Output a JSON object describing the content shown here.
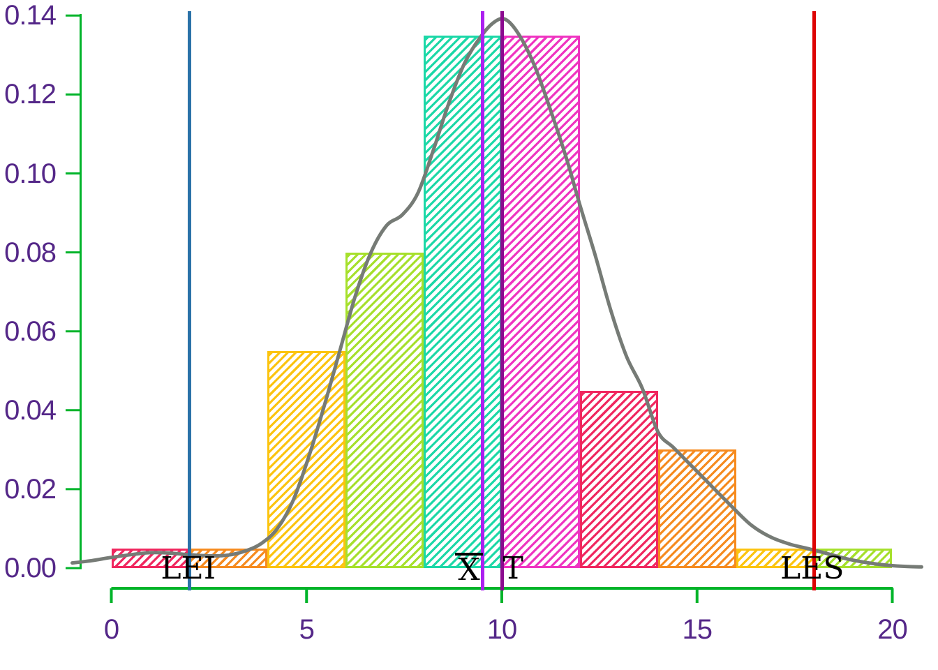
{
  "chart_data": {
    "type": "histogram_with_density",
    "title": "",
    "xlabel": "",
    "ylabel": "",
    "xlim": [
      -1,
      21.2
    ],
    "ylim": [
      0,
      0.14
    ],
    "grid": false,
    "x_ticks": [
      0,
      5,
      10,
      15,
      20
    ],
    "y_ticks": [
      {
        "value": 0.0,
        "label": "0.00"
      },
      {
        "value": 0.02,
        "label": "0.02"
      },
      {
        "value": 0.04,
        "label": "0.04"
      },
      {
        "value": 0.06,
        "label": "0.06"
      },
      {
        "value": 0.08,
        "label": "0.08"
      },
      {
        "value": 0.1,
        "label": "0.10"
      },
      {
        "value": 0.12,
        "label": "0.12"
      },
      {
        "value": 0.14,
        "label": "0.14"
      }
    ],
    "bin_width": 2,
    "bars": [
      {
        "x0": 0,
        "x1": 2,
        "density": 0.005,
        "color": "#F0275F",
        "name": "bar-0-2"
      },
      {
        "x0": 2,
        "x1": 4,
        "density": 0.005,
        "color": "#F68B1F",
        "name": "bar-2-4"
      },
      {
        "x0": 4,
        "x1": 6,
        "density": 0.055,
        "color": "#FCC40F",
        "name": "bar-4-6"
      },
      {
        "x0": 6,
        "x1": 8,
        "density": 0.08,
        "color": "#A6E02C",
        "name": "bar-6-8"
      },
      {
        "x0": 8,
        "x1": 10,
        "density": 0.135,
        "color": "#1CD8A7",
        "name": "bar-8-10"
      },
      {
        "x0": 10,
        "x1": 12,
        "density": 0.135,
        "color": "#EF34C1",
        "name": "bar-10-12"
      },
      {
        "x0": 12,
        "x1": 14,
        "density": 0.045,
        "color": "#F0275F",
        "name": "bar-12-14"
      },
      {
        "x0": 14,
        "x1": 16,
        "density": 0.03,
        "color": "#F68B1F",
        "name": "bar-14-16"
      },
      {
        "x0": 16,
        "x1": 18,
        "density": 0.005,
        "color": "#FCC40F",
        "name": "bar-16-18"
      },
      {
        "x0": 18,
        "x1": 20,
        "density": 0.005,
        "color": "#A6E02C",
        "name": "bar-18-20"
      }
    ],
    "density_curve": [
      [
        -1.0,
        0.0013
      ],
      [
        -0.5,
        0.0019
      ],
      [
        0.0,
        0.0027
      ],
      [
        0.5,
        0.0034
      ],
      [
        1.0,
        0.0039
      ],
      [
        1.5,
        0.0038
      ],
      [
        2.0,
        0.0034
      ],
      [
        2.5,
        0.0031
      ],
      [
        3.0,
        0.0033
      ],
      [
        3.45,
        0.0044
      ],
      [
        3.85,
        0.0063
      ],
      [
        4.25,
        0.01
      ],
      [
        4.65,
        0.017
      ],
      [
        5.05,
        0.028
      ],
      [
        5.45,
        0.041
      ],
      [
        5.85,
        0.055
      ],
      [
        6.25,
        0.069
      ],
      [
        6.65,
        0.08
      ],
      [
        7.05,
        0.0868
      ],
      [
        7.45,
        0.0895
      ],
      [
        7.85,
        0.095
      ],
      [
        8.25,
        0.106
      ],
      [
        8.65,
        0.118
      ],
      [
        9.05,
        0.128
      ],
      [
        9.45,
        0.1345
      ],
      [
        9.8,
        0.1383
      ],
      [
        10.1,
        0.139
      ],
      [
        10.45,
        0.135
      ],
      [
        10.85,
        0.127
      ],
      [
        11.25,
        0.116
      ],
      [
        11.65,
        0.104
      ],
      [
        12.0,
        0.092
      ],
      [
        12.4,
        0.079
      ],
      [
        12.8,
        0.065
      ],
      [
        13.2,
        0.0535
      ],
      [
        13.6,
        0.0455
      ],
      [
        14.0,
        0.0345
      ],
      [
        14.4,
        0.0305
      ],
      [
        14.9,
        0.0255
      ],
      [
        15.4,
        0.0205
      ],
      [
        15.9,
        0.0155
      ],
      [
        16.4,
        0.0108
      ],
      [
        16.9,
        0.0078
      ],
      [
        17.4,
        0.006
      ],
      [
        17.9,
        0.0048
      ],
      [
        18.4,
        0.0035
      ],
      [
        18.9,
        0.0022
      ],
      [
        19.4,
        0.0013
      ],
      [
        19.9,
        0.0007
      ],
      [
        20.4,
        0.0004
      ],
      [
        20.75,
        0.0003
      ]
    ],
    "vlines": [
      {
        "x": 2.0,
        "color": "#2B72A8",
        "label": "LEI",
        "label_x": 1.97,
        "overline": false,
        "name": "lei-line"
      },
      {
        "x": 9.5,
        "color": "#AC20F0",
        "label": "X",
        "label_x": 9.16,
        "overline": true,
        "name": "xbar-line"
      },
      {
        "x": 10.0,
        "color": "#8B0B8F",
        "label": "T",
        "label_x": 10.29,
        "overline": false,
        "name": "t-line"
      },
      {
        "x": 18.0,
        "color": "#DD0404",
        "label": "LES",
        "label_x": 17.95,
        "overline": false,
        "name": "les-line"
      }
    ],
    "style": {
      "axis_color": "#00B42A",
      "tick_label_color": "#542788",
      "curve_color": "#767B76",
      "annotation_color": "#000000",
      "background": "#FFFFFF"
    }
  }
}
